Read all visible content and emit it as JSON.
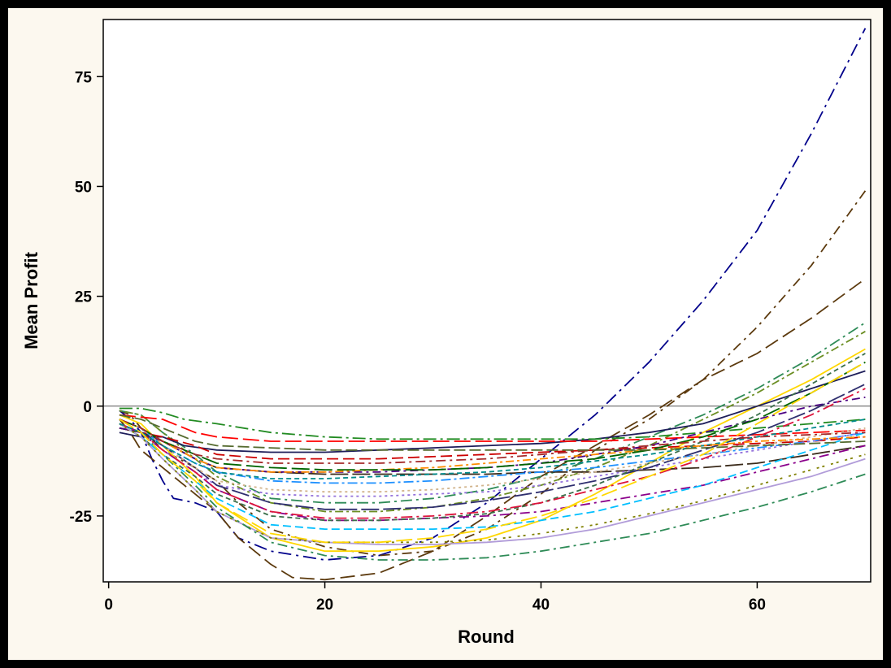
{
  "chart_data": {
    "type": "line",
    "title": "",
    "xlabel": "Round",
    "ylabel": "Mean Profit",
    "xlim": [
      -0.5,
      70.5
    ],
    "ylim": [
      -40,
      88
    ],
    "xticks": [
      0,
      20,
      40,
      60
    ],
    "yticks": [
      -25,
      0,
      25,
      50,
      75
    ],
    "reference_line": 0,
    "grid": false,
    "legend": "none",
    "series": [
      {
        "color": "#00008b",
        "dash": "16,6,3,6",
        "x": [
          1,
          2,
          3,
          4,
          5,
          6,
          8,
          10,
          12,
          15,
          20,
          25,
          30,
          35,
          40,
          45,
          50,
          55,
          60,
          65,
          70
        ],
        "y": [
          -1,
          -3,
          -6,
          -12,
          -17,
          -21,
          -22,
          -24,
          -30,
          -33,
          -35,
          -34,
          -30,
          -22,
          -12,
          -2,
          10,
          24,
          40,
          62,
          86
        ]
      },
      {
        "color": "#5c3a0e",
        "dash": "12,6,3,6",
        "x": [
          1,
          2,
          3,
          5,
          8,
          10,
          12,
          15,
          20,
          25,
          30,
          35,
          40,
          45,
          50,
          55,
          60,
          65,
          70
        ],
        "y": [
          -1,
          -2,
          -5,
          -10,
          -14,
          -17,
          -22,
          -28,
          -32,
          -34,
          -33,
          -28,
          -20,
          -10,
          -3,
          6,
          18,
          32,
          49
        ]
      },
      {
        "color": "#5c3a0e",
        "dash": "18,7",
        "x": [
          1,
          2,
          3,
          5,
          7,
          10,
          12,
          15,
          17,
          20,
          25,
          30,
          35,
          40,
          45,
          50,
          55,
          60,
          65,
          70
        ],
        "y": [
          -3,
          -6,
          -10,
          -14,
          -18,
          -24,
          -30,
          -36,
          -39,
          -39.5,
          -38,
          -33,
          -25,
          -16,
          -9,
          -2,
          6,
          12,
          20,
          29
        ]
      },
      {
        "color": "#2e8b57",
        "dash": "14,5,3,5",
        "x": [
          1,
          3,
          5,
          8,
          10,
          15,
          20,
          25,
          30,
          35,
          40,
          45,
          50,
          55,
          60,
          65,
          70
        ],
        "y": [
          -1,
          -2,
          -6,
          -11,
          -15,
          -21,
          -22,
          -22,
          -21,
          -19,
          -16,
          -12,
          -7,
          -2,
          4,
          11,
          19
        ]
      },
      {
        "color": "#6b8e23",
        "dash": "3,4,10,4",
        "x": [
          1,
          3,
          5,
          8,
          10,
          15,
          20,
          25,
          30,
          35,
          40,
          45,
          50,
          55,
          60,
          65,
          70
        ],
        "y": [
          -1,
          -2,
          -6,
          -12,
          -16,
          -22,
          -24,
          -24,
          -23,
          -21,
          -18,
          -14,
          -9,
          -3,
          3,
          10,
          17
        ]
      },
      {
        "color": "#ffd700",
        "dash": "none",
        "x": [
          1,
          3,
          5,
          8,
          10,
          15,
          20,
          25,
          30,
          35,
          40,
          45,
          50,
          55,
          60,
          65,
          70
        ],
        "y": [
          -2,
          -4,
          -9,
          -16,
          -22,
          -30,
          -33,
          -33,
          -32,
          -30,
          -26,
          -20,
          -13,
          -6,
          0,
          6,
          13
        ]
      },
      {
        "color": "#1e1e5a",
        "dash": "none",
        "x": [
          1,
          3,
          5,
          7,
          10,
          15,
          20,
          25,
          30,
          35,
          40,
          45,
          50,
          55,
          60,
          65,
          70
        ],
        "y": [
          -6,
          -7,
          -7,
          -9,
          -10,
          -10.5,
          -10.5,
          -10,
          -9.5,
          -9,
          -8.5,
          -7.5,
          -6,
          -4,
          0,
          4,
          8
        ]
      },
      {
        "color": "#228b22",
        "dash": "16,5,3,5",
        "x": [
          1,
          2,
          3,
          4,
          5,
          7,
          10,
          15,
          20,
          25,
          30,
          35,
          40,
          45,
          50,
          55,
          60,
          65,
          70
        ],
        "y": [
          -0.5,
          -0.5,
          -0.5,
          -1,
          -1.5,
          -3,
          -4,
          -6,
          -7,
          -7.5,
          -7.5,
          -7.5,
          -7.5,
          -7.5,
          -7,
          -6,
          -5,
          -4,
          -3
        ]
      },
      {
        "color": "#ff0000",
        "dash": "20,6",
        "x": [
          1,
          3,
          5,
          8,
          10,
          15,
          20,
          25,
          30,
          35,
          40,
          45,
          50,
          55,
          60,
          65,
          70
        ],
        "y": [
          -2,
          -2.5,
          -3,
          -6,
          -7,
          -8,
          -8,
          -8,
          -8,
          -8,
          -8,
          -8,
          -7.5,
          -7,
          -6.5,
          -6,
          -5.5
        ]
      },
      {
        "color": "#cc0000",
        "dash": "14,6",
        "x": [
          1,
          3,
          5,
          8,
          10,
          15,
          20,
          25,
          30,
          35,
          40,
          45,
          50,
          55,
          60,
          65,
          70
        ],
        "y": [
          -5,
          -6,
          -7,
          -9,
          -11,
          -12,
          -12,
          -12,
          -11.5,
          -11,
          -10.5,
          -10,
          -9.5,
          -9,
          -8.5,
          -8,
          -7
        ]
      },
      {
        "color": "#3a2a1a",
        "dash": "22,5",
        "x": [
          1,
          3,
          5,
          8,
          10,
          15,
          20,
          25,
          30,
          35,
          40,
          45,
          50,
          55,
          60,
          65,
          70
        ],
        "y": [
          -5,
          -6,
          -8,
          -12,
          -14,
          -15,
          -15.5,
          -15.5,
          -15.5,
          -15.5,
          -15,
          -15,
          -14.5,
          -14,
          -13,
          -11,
          -9
        ]
      },
      {
        "color": "#4b0082",
        "dash": "10,5,3,5",
        "x": [
          1,
          3,
          5,
          8,
          10,
          15,
          20,
          25,
          30,
          35,
          40,
          45,
          50,
          55,
          60,
          65,
          70
        ],
        "y": [
          -5,
          -6,
          -8,
          -12,
          -14,
          -15,
          -15,
          -15,
          -14.5,
          -14,
          -13,
          -11,
          -9,
          -6,
          -3,
          0,
          2
        ]
      },
      {
        "color": "#1e90ff",
        "dash": "12,4,3,4",
        "x": [
          1,
          3,
          5,
          8,
          10,
          15,
          20,
          25,
          30,
          35,
          40,
          45,
          50,
          55,
          60,
          65,
          70
        ],
        "y": [
          -3,
          -5,
          -9,
          -13,
          -15,
          -17,
          -17.5,
          -17.5,
          -17,
          -16,
          -15,
          -14,
          -12.5,
          -11,
          -9.5,
          -8,
          -6
        ]
      },
      {
        "color": "#9370db",
        "dash": "3,4",
        "x": [
          1,
          3,
          5,
          8,
          10,
          15,
          20,
          25,
          30,
          35,
          40,
          45,
          50,
          55,
          60,
          65,
          70
        ],
        "y": [
          -4,
          -6,
          -10,
          -15,
          -18,
          -20,
          -20.5,
          -20.5,
          -20,
          -19.5,
          -18,
          -16,
          -14,
          -12,
          -10,
          -8,
          -6
        ]
      },
      {
        "color": "#2f2f6f",
        "dash": "22,5",
        "x": [
          1,
          3,
          5,
          8,
          10,
          15,
          20,
          25,
          30,
          35,
          40,
          45,
          50,
          55,
          60,
          65,
          70
        ],
        "y": [
          -4,
          -6,
          -9,
          -14,
          -18,
          -22,
          -23.5,
          -23.5,
          -23,
          -21.5,
          -19.5,
          -17,
          -14,
          -10,
          -6,
          -1,
          5
        ]
      },
      {
        "color": "#8b008b",
        "dash": "12,5,3,5",
        "x": [
          1,
          3,
          5,
          8,
          10,
          15,
          20,
          25,
          30,
          35,
          40,
          45,
          50,
          55,
          60,
          65,
          70
        ],
        "y": [
          -4,
          -6,
          -10,
          -15,
          -19,
          -24,
          -26,
          -26,
          -25.5,
          -25,
          -24,
          -22,
          -20,
          -18,
          -15,
          -12,
          -9
        ]
      },
      {
        "color": "#3a6e4a",
        "dash": "6,4",
        "x": [
          1,
          3,
          5,
          8,
          10,
          15,
          20,
          25,
          30,
          35,
          40,
          45,
          50,
          55,
          60,
          65,
          70
        ],
        "y": [
          -4,
          -7,
          -11,
          -16,
          -20,
          -25,
          -26,
          -26,
          -25.5,
          -24.5,
          -22,
          -18,
          -13,
          -8,
          -2,
          5,
          12
        ]
      },
      {
        "color": "#d2b48c",
        "dash": "3,4",
        "x": [
          1,
          3,
          5,
          8,
          10,
          15,
          20,
          25,
          30,
          35,
          40,
          45,
          50,
          55,
          60,
          65,
          70
        ],
        "y": [
          -3,
          -5,
          -9,
          -14,
          -17,
          -19,
          -19.5,
          -19.5,
          -19,
          -18,
          -16.5,
          -15,
          -13,
          -11,
          -9,
          -7,
          -5
        ]
      },
      {
        "color": "#00bfff",
        "dash": "10,5",
        "x": [
          1,
          3,
          5,
          8,
          10,
          15,
          20,
          25,
          30,
          35,
          40,
          45,
          50,
          55,
          60,
          65,
          70
        ],
        "y": [
          -4,
          -7,
          -11,
          -17,
          -21,
          -27,
          -28,
          -28,
          -28,
          -27.5,
          -26,
          -24,
          -21,
          -18,
          -14,
          -10,
          -6
        ]
      },
      {
        "color": "#dc143c",
        "dash": "14,5,3,5",
        "x": [
          1,
          3,
          5,
          8,
          10,
          15,
          20,
          25,
          30,
          35,
          40,
          45,
          50,
          55,
          60,
          65,
          70
        ],
        "y": [
          -4,
          -6,
          -10,
          -15,
          -19,
          -24,
          -25.5,
          -25.5,
          -25,
          -24,
          -22,
          -19,
          -16,
          -12,
          -7,
          -2,
          4
        ]
      },
      {
        "color": "#b19cd9",
        "dash": "none",
        "x": [
          1,
          3,
          5,
          8,
          10,
          15,
          20,
          25,
          30,
          35,
          40,
          45,
          50,
          55,
          60,
          65,
          70
        ],
        "y": [
          -4,
          -7,
          -12,
          -19,
          -24,
          -30,
          -31,
          -31.5,
          -31.5,
          -31,
          -30,
          -28,
          -25,
          -22,
          -19,
          -16,
          -12
        ]
      },
      {
        "color": "#808000",
        "dash": "3,4,3,8",
        "x": [
          1,
          3,
          5,
          8,
          10,
          15,
          20,
          25,
          30,
          35,
          40,
          45,
          50,
          55,
          60,
          65,
          70
        ],
        "y": [
          -4,
          -7,
          -12,
          -19,
          -24,
          -30,
          -31,
          -31,
          -31,
          -30.5,
          -29,
          -27,
          -24.5,
          -21.5,
          -18,
          -14.5,
          -11
        ]
      },
      {
        "color": "#2e8b57",
        "dash": "12,5,3,5",
        "x": [
          1,
          3,
          5,
          8,
          10,
          15,
          20,
          25,
          30,
          35,
          40,
          45,
          50,
          55,
          60,
          65,
          70
        ],
        "y": [
          -3,
          -6,
          -11,
          -18,
          -23,
          -31,
          -34,
          -35,
          -35,
          -34.5,
          -33,
          -31,
          -29,
          -26,
          -23,
          -19.5,
          -15.5
        ]
      },
      {
        "color": "#008b8b",
        "dash": "6,4",
        "x": [
          1,
          3,
          5,
          8,
          10,
          15,
          20,
          25,
          30,
          35,
          40,
          45,
          50,
          55,
          60,
          65,
          70
        ],
        "y": [
          -4,
          -6,
          -9,
          -13,
          -15,
          -16.5,
          -16.5,
          -16,
          -15.5,
          -15,
          -14,
          -12.5,
          -11,
          -9,
          -7,
          -5,
          -3
        ]
      },
      {
        "color": "#ff8c00",
        "dash": "3,4,10,4",
        "x": [
          1,
          3,
          5,
          8,
          10,
          15,
          20,
          25,
          30,
          35,
          40,
          45,
          50,
          55,
          60,
          65,
          70
        ],
        "y": [
          -3,
          -5,
          -8,
          -12,
          -14,
          -15,
          -15,
          -14.5,
          -14,
          -13,
          -12,
          -11,
          -10,
          -9,
          -8,
          -7.5,
          -7
        ]
      },
      {
        "color": "#006400",
        "dash": "22,6",
        "x": [
          1,
          3,
          5,
          8,
          10,
          15,
          20,
          25,
          30,
          35,
          40,
          45,
          50,
          55,
          60,
          65,
          70
        ],
        "y": [
          -3,
          -5,
          -8,
          -11,
          -13,
          -14,
          -14.5,
          -14.5,
          -14.5,
          -14,
          -13,
          -12,
          -10,
          -7,
          -3,
          3,
          10
        ]
      },
      {
        "color": "#a52a2a",
        "dash": "12,5,3,5",
        "x": [
          1,
          3,
          5,
          8,
          10,
          15,
          20,
          25,
          30,
          35,
          40,
          45,
          50,
          55,
          60,
          65,
          70
        ],
        "y": [
          -3,
          -5,
          -8,
          -11,
          -12,
          -13,
          -13,
          -13,
          -12.5,
          -12,
          -11,
          -10,
          -9,
          -8,
          -7,
          -6.5,
          -6
        ]
      },
      {
        "color": "#ffd700",
        "dash": "20,6",
        "x": [
          1,
          3,
          5,
          8,
          10,
          15,
          20,
          25,
          30,
          35,
          40,
          45,
          50,
          55,
          60,
          65,
          70
        ],
        "y": [
          -3,
          -6,
          -11,
          -17,
          -22,
          -29,
          -31,
          -31,
          -30,
          -28,
          -25,
          -21,
          -16,
          -11,
          -4,
          3,
          10
        ]
      },
      {
        "color": "#556b2f",
        "dash": "14,5",
        "x": [
          1,
          3,
          5,
          8,
          10,
          15,
          20,
          25,
          30,
          35,
          40,
          45,
          50,
          55,
          60,
          65,
          70
        ],
        "y": [
          -2,
          -3,
          -5,
          -8,
          -9,
          -9.5,
          -10,
          -10,
          -10,
          -10,
          -10,
          -10,
          -10,
          -9.5,
          -9,
          -8.5,
          -8
        ]
      }
    ]
  }
}
